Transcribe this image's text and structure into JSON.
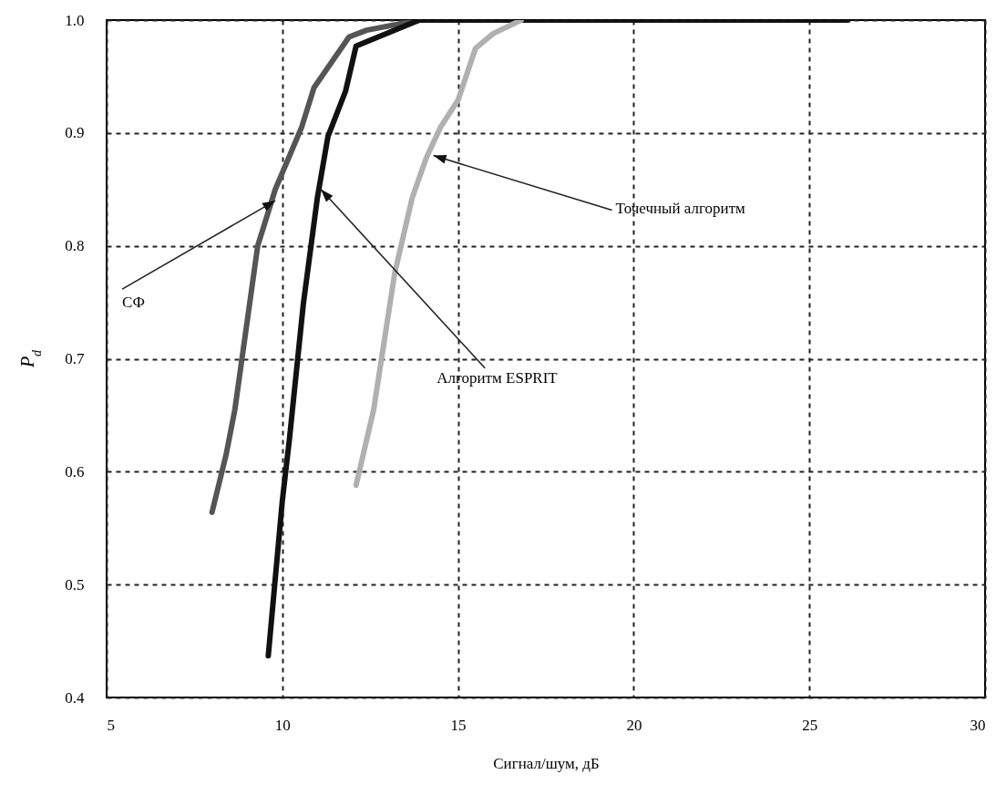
{
  "chart_data": {
    "type": "line",
    "xlabel": "Сигнал/шум, дБ",
    "ylabel": "P$_{d}$",
    "xlim": [
      5,
      30
    ],
    "ylim": [
      0.4,
      1.0
    ],
    "xticks": [
      5,
      10,
      15,
      20,
      25,
      30
    ],
    "yticks": [
      0.4,
      0.5,
      0.6,
      0.7,
      0.8,
      0.9,
      {
        "value": 1.0,
        "label": "1.0"
      }
    ],
    "grid": true,
    "line_style": "solid",
    "series": [
      {
        "color": "#555555",
        "x": [
          8.0,
          8.4,
          8.65,
          9.3,
          9.8,
          10.55,
          10.9,
          11.9,
          12.4,
          13.9,
          14.5
        ],
        "values": [
          0.564,
          0.615,
          0.655,
          0.8,
          0.85,
          0.905,
          0.94,
          0.985,
          0.991,
          1.0,
          1.0
        ]
      },
      {
        "color": "#111111",
        "x": [
          9.6,
          10.0,
          10.2,
          10.6,
          11.0,
          11.3,
          11.8,
          12.1,
          13.9,
          26.1
        ],
        "values": [
          0.437,
          0.574,
          0.628,
          0.749,
          0.843,
          0.897,
          0.937,
          0.977,
          1.0,
          1.0
        ]
      },
      {
        "color": "#b0b0b0",
        "x": [
          12.1,
          12.6,
          13.2,
          13.7,
          14.1,
          14.5,
          15.0,
          15.5,
          16.0,
          16.8
        ],
        "values": [
          0.588,
          0.655,
          0.776,
          0.843,
          0.878,
          0.905,
          0.929,
          0.975,
          0.988,
          1.0
        ]
      }
    ],
    "annotations": [
      {
        "text": "СФ",
        "x": 9.8,
        "y": 0.84
      },
      {
        "text": "Алгоритм ESPRIT",
        "x": 11.1,
        "y": 0.85
      },
      {
        "text": "Точечный алгоритм",
        "x": 14.3,
        "y": 0.88
      }
    ]
  }
}
